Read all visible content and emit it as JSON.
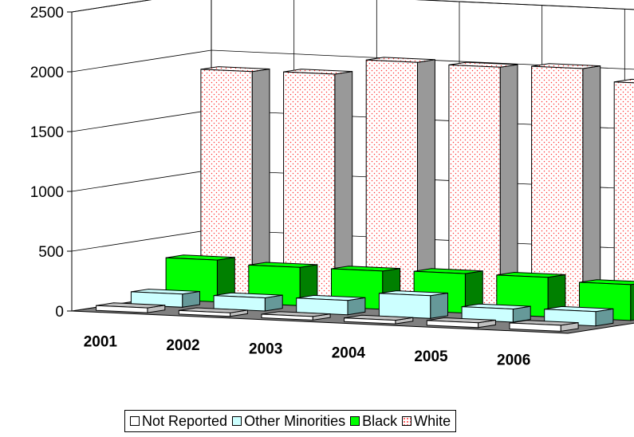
{
  "chart_data": {
    "type": "bar",
    "categories": [
      "2001",
      "2002",
      "2003",
      "2004",
      "2005",
      "2006"
    ],
    "ylim": [
      0,
      2500
    ],
    "y_ticks": [
      "0",
      "500",
      "1000",
      "1500",
      "2000",
      "2500"
    ],
    "grid": true,
    "legend_position": "bottom",
    "series": [
      {
        "name": "Not Reported",
        "color": "#ffffff",
        "side_color": "#c0c0c0",
        "pattern": "none",
        "values": [
          40,
          30,
          30,
          30,
          40,
          50
        ]
      },
      {
        "name": "Other Minorities",
        "color": "#ccffff",
        "side_color": "#669999",
        "pattern": "none",
        "values": [
          110,
          110,
          120,
          190,
          110,
          120
        ]
      },
      {
        "name": "Black",
        "color": "#00ff00",
        "side_color": "#008000",
        "pattern": "none",
        "values": [
          350,
          320,
          320,
          330,
          330,
          300
        ]
      },
      {
        "name": "White",
        "color": "#ffffff",
        "side_color": "#999999",
        "pattern": "dots",
        "dot_color": "#ff0000",
        "values": [
          1880,
          1890,
          2020,
          2010,
          2030,
          1930
        ]
      }
    ]
  }
}
